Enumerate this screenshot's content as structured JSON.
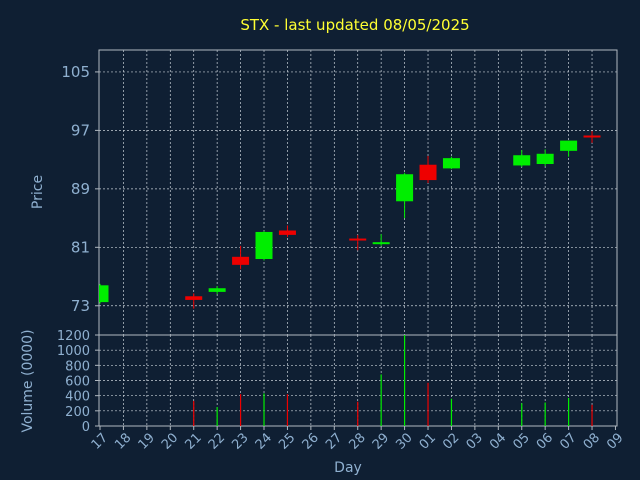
{
  "chart_data": {
    "type": "candlestick",
    "title": "STX - last updated 08/05/2025",
    "ylabel": "Price",
    "volume_label": "Volume (0000)",
    "xlabel": "Day",
    "price_ylim": [
      69,
      108
    ],
    "price_yticks": [
      73,
      81,
      89,
      97,
      105
    ],
    "volume_ylim": [
      0,
      1200
    ],
    "volume_yticks": [
      0,
      200,
      400,
      600,
      800,
      1000,
      1200
    ],
    "x_tick_labels": [
      "17",
      "18",
      "19",
      "20",
      "21",
      "22",
      "23",
      "24",
      "25",
      "26",
      "27",
      "28",
      "29",
      "30",
      "01",
      "02",
      "03",
      "04",
      "05",
      "06",
      "07",
      "08",
      "09"
    ],
    "grid": true,
    "colors": {
      "up": "#00ee00",
      "down": "#ee0000",
      "background": "#0f1f33",
      "title": "#ffff33",
      "text": "#8fb0d0"
    },
    "candles": [
      {
        "day": "17",
        "open": 73.5,
        "high": 76.0,
        "low": 73.3,
        "close": 75.8,
        "volume": 0
      },
      {
        "day": "21",
        "open": 74.3,
        "high": 74.7,
        "low": 72.6,
        "close": 73.8,
        "volume": 330
      },
      {
        "day": "22",
        "open": 74.9,
        "high": 75.7,
        "low": 74.6,
        "close": 75.4,
        "volume": 250
      },
      {
        "day": "23",
        "open": 79.7,
        "high": 81.2,
        "low": 78.0,
        "close": 78.6,
        "volume": 420
      },
      {
        "day": "24",
        "open": 79.4,
        "high": 83.2,
        "low": 79.2,
        "close": 83.1,
        "volume": 430
      },
      {
        "day": "25",
        "open": 83.3,
        "high": 84.0,
        "low": 82.4,
        "close": 82.7,
        "volume": 420
      },
      {
        "day": "28",
        "open": 82.2,
        "high": 82.7,
        "low": 80.6,
        "close": 82.0,
        "volume": 320
      },
      {
        "day": "29",
        "open": 81.5,
        "high": 82.8,
        "low": 81.2,
        "close": 81.7,
        "volume": 680
      },
      {
        "day": "30",
        "open": 87.3,
        "high": 91.2,
        "low": 85.0,
        "close": 91.0,
        "volume": 1200
      },
      {
        "day": "01",
        "open": 92.3,
        "high": 93.5,
        "low": 89.8,
        "close": 90.2,
        "volume": 570
      },
      {
        "day": "02",
        "open": 91.8,
        "high": 93.4,
        "low": 91.7,
        "close": 93.2,
        "volume": 360
      },
      {
        "day": "05",
        "open": 92.2,
        "high": 94.3,
        "low": 92.0,
        "close": 93.6,
        "volume": 300
      },
      {
        "day": "06",
        "open": 92.4,
        "high": 94.4,
        "low": 92.1,
        "close": 93.8,
        "volume": 310
      },
      {
        "day": "07",
        "open": 94.2,
        "high": 95.6,
        "low": 93.4,
        "close": 95.6,
        "volume": 370
      },
      {
        "day": "08",
        "open": 96.3,
        "high": 96.9,
        "low": 95.3,
        "close": 96.1,
        "volume": 280
      }
    ]
  }
}
